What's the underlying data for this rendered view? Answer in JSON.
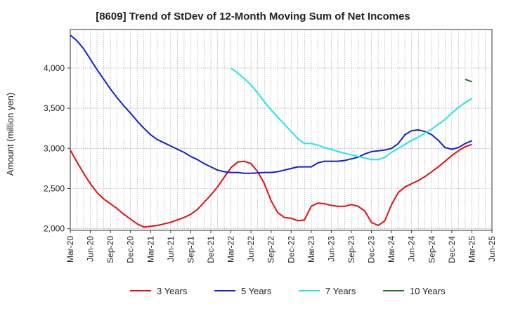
{
  "chart_data": {
    "type": "line",
    "title": "[8609]  Trend of StDev of 12-Month Moving Sum of Net Incomes",
    "xlabel": "",
    "ylabel": "Amount (million yen)",
    "ylim": [
      1980,
      4480
    ],
    "y_ticks": [
      2000,
      2500,
      3000,
      3500,
      4000
    ],
    "y_tick_labels": [
      "2,000",
      "2,500",
      "3,000",
      "3,500",
      "4,000"
    ],
    "x_start": "2020-03",
    "x_end": "2025-06",
    "x_tick_labels": [
      "Mar-20",
      "Jun-20",
      "Sep-20",
      "Dec-20",
      "Mar-21",
      "Jun-21",
      "Sep-21",
      "Dec-21",
      "Mar-22",
      "Jun-22",
      "Sep-22",
      "Dec-22",
      "Mar-23",
      "Jun-23",
      "Sep-23",
      "Dec-23",
      "Mar-24",
      "Jun-24",
      "Sep-24",
      "Dec-24",
      "Mar-25",
      "Jun-25"
    ],
    "grid": true,
    "legend_position": "bottom",
    "series": [
      {
        "name": "3 Years",
        "color": "#dd1111",
        "x": [
          "2020-03",
          "2020-04",
          "2020-05",
          "2020-06",
          "2020-07",
          "2020-08",
          "2020-09",
          "2020-10",
          "2020-11",
          "2020-12",
          "2021-01",
          "2021-02",
          "2021-03",
          "2021-04",
          "2021-05",
          "2021-06",
          "2021-07",
          "2021-08",
          "2021-09",
          "2021-10",
          "2021-11",
          "2021-12",
          "2022-01",
          "2022-02",
          "2022-03",
          "2022-04",
          "2022-05",
          "2022-06",
          "2022-07",
          "2022-08",
          "2022-09",
          "2022-10",
          "2022-11",
          "2022-12",
          "2023-01",
          "2023-02",
          "2023-03",
          "2023-04",
          "2023-05",
          "2023-06",
          "2023-07",
          "2023-08",
          "2023-09",
          "2023-10",
          "2023-11",
          "2023-12",
          "2024-01",
          "2024-02",
          "2024-03",
          "2024-04",
          "2024-05",
          "2024-06",
          "2024-07",
          "2024-08",
          "2024-09",
          "2024-10",
          "2024-11",
          "2024-12",
          "2025-01",
          "2025-02",
          "2025-03"
        ],
        "values": [
          2980,
          2830,
          2690,
          2560,
          2450,
          2370,
          2310,
          2250,
          2180,
          2120,
          2060,
          2020,
          2030,
          2040,
          2060,
          2080,
          2110,
          2140,
          2180,
          2240,
          2330,
          2420,
          2520,
          2640,
          2760,
          2830,
          2840,
          2810,
          2710,
          2560,
          2350,
          2200,
          2140,
          2130,
          2100,
          2110,
          2280,
          2320,
          2310,
          2290,
          2280,
          2280,
          2300,
          2280,
          2220,
          2080,
          2040,
          2100,
          2300,
          2450,
          2520,
          2560,
          2600,
          2650,
          2710,
          2770,
          2840,
          2910,
          2970,
          3020,
          3050
        ]
      },
      {
        "name": "5 Years",
        "color": "#1122cc",
        "x": [
          "2020-03",
          "2020-04",
          "2020-05",
          "2020-06",
          "2020-07",
          "2020-08",
          "2020-09",
          "2020-10",
          "2020-11",
          "2020-12",
          "2021-01",
          "2021-02",
          "2021-03",
          "2021-04",
          "2021-05",
          "2021-06",
          "2021-07",
          "2021-08",
          "2021-09",
          "2021-10",
          "2021-11",
          "2021-12",
          "2022-01",
          "2022-02",
          "2022-03",
          "2022-04",
          "2022-05",
          "2022-06",
          "2022-07",
          "2022-08",
          "2022-09",
          "2022-10",
          "2022-11",
          "2022-12",
          "2023-01",
          "2023-02",
          "2023-03",
          "2023-04",
          "2023-05",
          "2023-06",
          "2023-07",
          "2023-08",
          "2023-09",
          "2023-10",
          "2023-11",
          "2023-12",
          "2024-01",
          "2024-02",
          "2024-03",
          "2024-04",
          "2024-05",
          "2024-06",
          "2024-07",
          "2024-08",
          "2024-09",
          "2024-10",
          "2024-11",
          "2024-12",
          "2025-01",
          "2025-02",
          "2025-03"
        ],
        "values": [
          4410,
          4340,
          4240,
          4110,
          3980,
          3860,
          3740,
          3630,
          3530,
          3440,
          3340,
          3250,
          3170,
          3110,
          3070,
          3030,
          2990,
          2950,
          2900,
          2860,
          2810,
          2770,
          2730,
          2710,
          2700,
          2700,
          2690,
          2690,
          2695,
          2700,
          2700,
          2710,
          2730,
          2750,
          2770,
          2770,
          2770,
          2820,
          2840,
          2840,
          2840,
          2850,
          2870,
          2890,
          2930,
          2960,
          2970,
          2980,
          3000,
          3060,
          3170,
          3220,
          3230,
          3210,
          3170,
          3100,
          3010,
          2990,
          3010,
          3060,
          3095
        ]
      },
      {
        "name": "7 Years",
        "color": "#22e5e5",
        "x": [
          "2022-03",
          "2022-04",
          "2022-05",
          "2022-06",
          "2022-07",
          "2022-08",
          "2022-09",
          "2022-10",
          "2022-11",
          "2022-12",
          "2023-01",
          "2023-02",
          "2023-03",
          "2023-04",
          "2023-05",
          "2023-06",
          "2023-07",
          "2023-08",
          "2023-09",
          "2023-10",
          "2023-11",
          "2023-12",
          "2024-01",
          "2024-02",
          "2024-03",
          "2024-04",
          "2024-05",
          "2024-06",
          "2024-07",
          "2024-08",
          "2024-09",
          "2024-10",
          "2024-11",
          "2024-12",
          "2025-01",
          "2025-02",
          "2025-03"
        ],
        "values": [
          4000,
          3940,
          3870,
          3790,
          3690,
          3580,
          3480,
          3390,
          3300,
          3210,
          3120,
          3060,
          3060,
          3040,
          3010,
          2990,
          2960,
          2940,
          2920,
          2900,
          2880,
          2860,
          2860,
          2890,
          2950,
          3000,
          3050,
          3100,
          3140,
          3190,
          3240,
          3300,
          3360,
          3440,
          3510,
          3570,
          3620
        ]
      },
      {
        "name": "10 Years",
        "color": "#227722",
        "x": [
          "2025-02",
          "2025-03"
        ],
        "values": [
          3860,
          3830
        ]
      }
    ]
  }
}
